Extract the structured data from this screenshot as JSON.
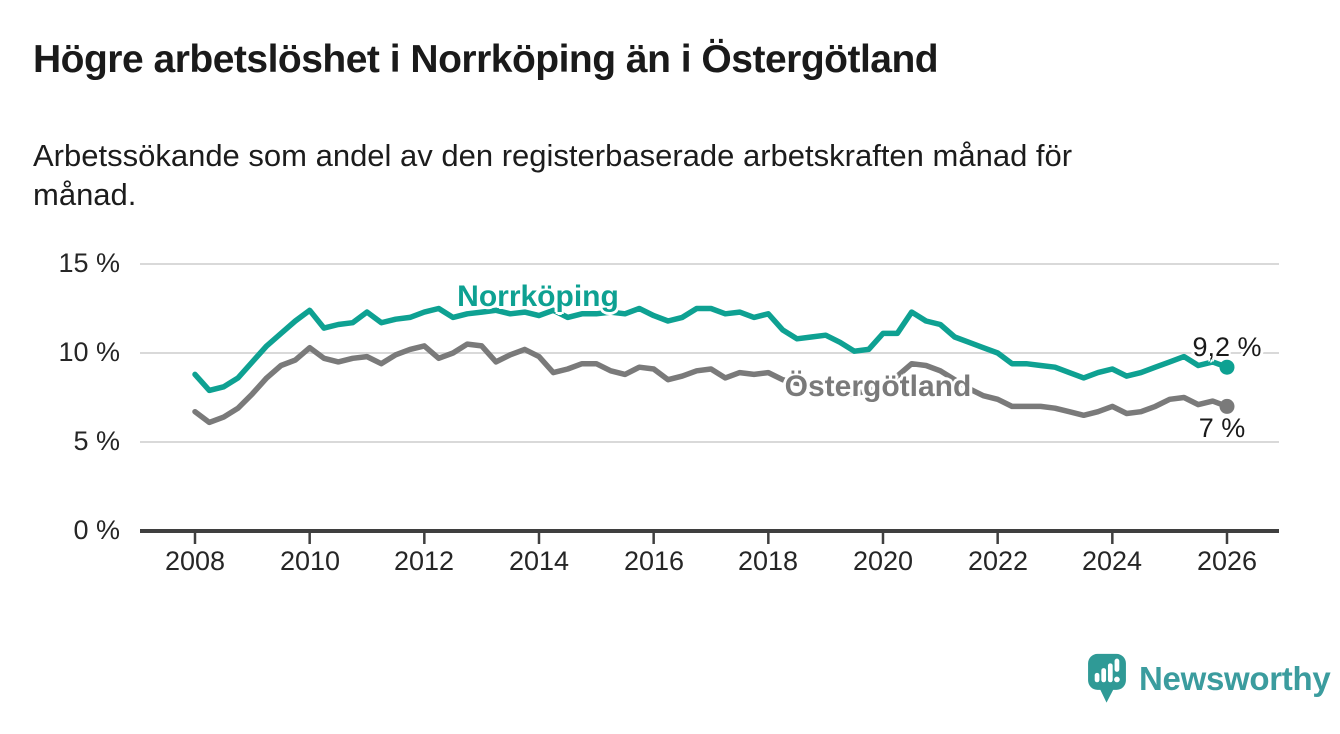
{
  "title": "Högre arbetslöshet i Norrköping än i Östergötland",
  "subtitle": {
    "line1": "Arbetssökande som andel av den registerbaserade arbetskraften månad för",
    "line2": "månad."
  },
  "chart_data": {
    "type": "line",
    "title": "Högre arbetslöshet i Norrköping än i Östergötland",
    "xlabel": "",
    "ylabel": "",
    "grid": "horizontal",
    "legend_position": "inline labels on lines",
    "ylim": [
      0,
      15
    ],
    "xlim": [
      2007.0,
      2026.9
    ],
    "x_unit": "year (decimal, monthly series sampled quarterly)",
    "x": [
      2008.0,
      2008.25,
      2008.5,
      2008.75,
      2009.0,
      2009.25,
      2009.5,
      2009.75,
      2010.0,
      2010.25,
      2010.5,
      2010.75,
      2011.0,
      2011.25,
      2011.5,
      2011.75,
      2012.0,
      2012.25,
      2012.5,
      2012.75,
      2013.0,
      2013.25,
      2013.5,
      2013.75,
      2014.0,
      2014.25,
      2014.5,
      2014.75,
      2015.0,
      2015.25,
      2015.5,
      2015.75,
      2016.0,
      2016.25,
      2016.5,
      2016.75,
      2017.0,
      2017.25,
      2017.5,
      2017.75,
      2018.0,
      2018.25,
      2018.5,
      2018.75,
      2019.0,
      2019.25,
      2019.5,
      2019.75,
      2020.0,
      2020.25,
      2020.5,
      2020.75,
      2021.0,
      2021.25,
      2021.5,
      2021.75,
      2022.0,
      2022.25,
      2022.5,
      2022.75,
      2023.0,
      2023.25,
      2023.5,
      2023.75,
      2024.0,
      2024.25,
      2024.5,
      2024.75,
      2025.0,
      2025.25,
      2025.5,
      2025.75,
      2026.0
    ],
    "series": [
      {
        "name": "Norrköping",
        "color": "#0ea192",
        "end_label": "9,2 %",
        "latest_value": 9.2,
        "values": [
          8.8,
          7.9,
          8.1,
          8.6,
          9.5,
          10.4,
          11.1,
          11.8,
          12.4,
          11.4,
          11.6,
          11.7,
          12.3,
          11.7,
          11.9,
          12.0,
          12.3,
          12.5,
          12.0,
          12.2,
          12.3,
          12.4,
          12.2,
          12.3,
          12.1,
          12.4,
          12.0,
          12.2,
          12.2,
          12.3,
          12.2,
          12.5,
          12.1,
          11.8,
          12.0,
          12.5,
          12.5,
          12.2,
          12.3,
          12.0,
          12.2,
          11.3,
          10.8,
          10.9,
          11.0,
          10.6,
          10.1,
          10.2,
          11.1,
          11.1,
          12.3,
          11.8,
          11.6,
          10.9,
          10.6,
          10.3,
          10.0,
          9.4,
          9.4,
          9.3,
          9.2,
          8.9,
          8.6,
          8.9,
          9.1,
          8.7,
          8.9,
          9.2,
          9.5,
          9.8,
          9.3,
          9.5,
          9.2
        ]
      },
      {
        "name": "Östergötland",
        "color": "#7a7a7a",
        "end_label": "7 %",
        "latest_value": 7.0,
        "values": [
          6.7,
          6.1,
          6.4,
          6.9,
          7.7,
          8.6,
          9.3,
          9.6,
          10.3,
          9.7,
          9.5,
          9.7,
          9.8,
          9.4,
          9.9,
          10.2,
          10.4,
          9.7,
          10.0,
          10.5,
          10.4,
          9.5,
          9.9,
          10.2,
          9.8,
          8.9,
          9.1,
          9.4,
          9.4,
          9.0,
          8.8,
          9.2,
          9.1,
          8.5,
          8.7,
          9.0,
          9.1,
          8.6,
          8.9,
          8.8,
          8.9,
          8.5,
          8.3,
          8.2,
          8.1,
          7.8,
          7.7,
          7.9,
          8.1,
          8.7,
          9.4,
          9.3,
          9.0,
          8.5,
          8.0,
          7.6,
          7.4,
          7.0,
          7.0,
          7.0,
          6.9,
          6.7,
          6.5,
          6.7,
          7.0,
          6.6,
          6.7,
          7.0,
          7.4,
          7.5,
          7.1,
          7.3,
          7.0
        ]
      }
    ],
    "y_ticks": [
      {
        "value": 0,
        "label": "0 %"
      },
      {
        "value": 5,
        "label": "5 %"
      },
      {
        "value": 10,
        "label": "10 %"
      },
      {
        "value": 15,
        "label": "15 %"
      }
    ],
    "x_ticks": [
      {
        "value": 2008,
        "label": "2008"
      },
      {
        "value": 2010,
        "label": "2010"
      },
      {
        "value": 2012,
        "label": "2012"
      },
      {
        "value": 2014,
        "label": "2014"
      },
      {
        "value": 2016,
        "label": "2016"
      },
      {
        "value": 2018,
        "label": "2018"
      },
      {
        "value": 2020,
        "label": "2020"
      },
      {
        "value": 2022,
        "label": "2022"
      },
      {
        "value": 2024,
        "label": "2024"
      },
      {
        "value": 2026,
        "label": "2026"
      }
    ]
  },
  "branding": {
    "logo_text": "Newsworthy",
    "logo_icon": "speech-bubble-bar-chart-icon",
    "logo_color": "#2f9a96"
  },
  "colors": {
    "norrkoping_line": "#0ea192",
    "ostergotland_line": "#7a7a7a",
    "text": "#1a1a1a",
    "grid": "#d9d9d9",
    "axis": "#3f3f3f",
    "background": "#ffffff"
  }
}
